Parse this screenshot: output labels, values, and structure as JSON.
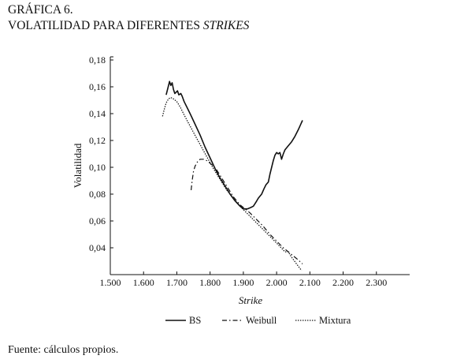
{
  "heading": {
    "line1": "GRÁFICA 6.",
    "line2_prefix": "VOLATILIDAD PARA DIFERENTES ",
    "line2_italic": "STRIKES"
  },
  "source": "Fuente: cálculos propios.",
  "chart_data": {
    "type": "line",
    "xlabel": "Strike",
    "ylabel": "Volatilidad",
    "xlim": [
      1500,
      2400
    ],
    "ylim": [
      0.02,
      0.18
    ],
    "x_ticks": [
      1500,
      1600,
      1700,
      1800,
      1900,
      2000,
      2100,
      2200,
      2300
    ],
    "x_tick_labels": [
      "1.500",
      "1.600",
      "1.700",
      "1.800",
      "1.900",
      "2.000",
      "2.100",
      "2.200",
      "2.300"
    ],
    "y_ticks": [
      0.04,
      0.06,
      0.08,
      0.1,
      0.12,
      0.14,
      0.16,
      0.18
    ],
    "y_tick_labels": [
      "0,04",
      "0,06",
      "0,08",
      "0,10",
      "0,12",
      "0,14",
      "0,16",
      "0,18"
    ],
    "grid": false,
    "legend_position": "bottom",
    "series": [
      {
        "name": "BS",
        "style": "solid",
        "points": [
          [
            1668,
            0.154
          ],
          [
            1674,
            0.16
          ],
          [
            1678,
            0.164
          ],
          [
            1682,
            0.161
          ],
          [
            1686,
            0.163
          ],
          [
            1690,
            0.158
          ],
          [
            1694,
            0.155
          ],
          [
            1698,
            0.156
          ],
          [
            1702,
            0.157
          ],
          [
            1706,
            0.154
          ],
          [
            1712,
            0.155
          ],
          [
            1716,
            0.153
          ],
          [
            1722,
            0.149
          ],
          [
            1730,
            0.145
          ],
          [
            1740,
            0.14
          ],
          [
            1755,
            0.132
          ],
          [
            1770,
            0.124
          ],
          [
            1785,
            0.115
          ],
          [
            1800,
            0.107
          ],
          [
            1815,
            0.099
          ],
          [
            1830,
            0.092
          ],
          [
            1845,
            0.086
          ],
          [
            1860,
            0.08
          ],
          [
            1875,
            0.075
          ],
          [
            1890,
            0.071
          ],
          [
            1900,
            0.069
          ],
          [
            1912,
            0.069
          ],
          [
            1922,
            0.07
          ],
          [
            1930,
            0.071
          ],
          [
            1938,
            0.074
          ],
          [
            1945,
            0.077
          ],
          [
            1955,
            0.08
          ],
          [
            1962,
            0.084
          ],
          [
            1968,
            0.087
          ],
          [
            1975,
            0.089
          ],
          [
            1980,
            0.095
          ],
          [
            1985,
            0.1
          ],
          [
            1990,
            0.105
          ],
          [
            1995,
            0.109
          ],
          [
            2000,
            0.111
          ],
          [
            2005,
            0.11
          ],
          [
            2010,
            0.111
          ],
          [
            2015,
            0.106
          ],
          [
            2020,
            0.11
          ],
          [
            2025,
            0.113
          ],
          [
            2035,
            0.116
          ],
          [
            2045,
            0.119
          ],
          [
            2055,
            0.123
          ],
          [
            2065,
            0.128
          ],
          [
            2078,
            0.135
          ]
        ]
      },
      {
        "name": "Weibull",
        "style": "dashdot",
        "points": [
          [
            1743,
            0.083
          ],
          [
            1746,
            0.09
          ],
          [
            1750,
            0.097
          ],
          [
            1755,
            0.101
          ],
          [
            1762,
            0.104
          ],
          [
            1770,
            0.106
          ],
          [
            1780,
            0.106
          ],
          [
            1790,
            0.105
          ],
          [
            1800,
            0.103
          ],
          [
            1810,
            0.101
          ],
          [
            1820,
            0.098
          ],
          [
            1835,
            0.092
          ],
          [
            1850,
            0.086
          ],
          [
            1870,
            0.078
          ],
          [
            1890,
            0.072
          ],
          [
            1900,
            0.07
          ],
          [
            1920,
            0.066
          ],
          [
            1940,
            0.061
          ],
          [
            1960,
            0.056
          ],
          [
            1980,
            0.05
          ],
          [
            2000,
            0.045
          ],
          [
            2020,
            0.04
          ],
          [
            2040,
            0.036
          ],
          [
            2060,
            0.032
          ],
          [
            2078,
            0.028
          ]
        ]
      },
      {
        "name": "Mixtura",
        "style": "dotted",
        "points": [
          [
            1657,
            0.138
          ],
          [
            1662,
            0.143
          ],
          [
            1668,
            0.148
          ],
          [
            1675,
            0.151
          ],
          [
            1682,
            0.152
          ],
          [
            1690,
            0.151
          ],
          [
            1700,
            0.149
          ],
          [
            1710,
            0.145
          ],
          [
            1720,
            0.14
          ],
          [
            1735,
            0.133
          ],
          [
            1750,
            0.126
          ],
          [
            1770,
            0.117
          ],
          [
            1790,
            0.108
          ],
          [
            1810,
            0.099
          ],
          [
            1830,
            0.091
          ],
          [
            1850,
            0.083
          ],
          [
            1870,
            0.077
          ],
          [
            1890,
            0.071
          ],
          [
            1910,
            0.066
          ],
          [
            1930,
            0.061
          ],
          [
            1950,
            0.056
          ],
          [
            1970,
            0.051
          ],
          [
            1990,
            0.046
          ],
          [
            2010,
            0.041
          ],
          [
            2025,
            0.037
          ],
          [
            2035,
            0.037
          ],
          [
            2045,
            0.033
          ],
          [
            2060,
            0.028
          ],
          [
            2075,
            0.023
          ]
        ]
      }
    ]
  }
}
